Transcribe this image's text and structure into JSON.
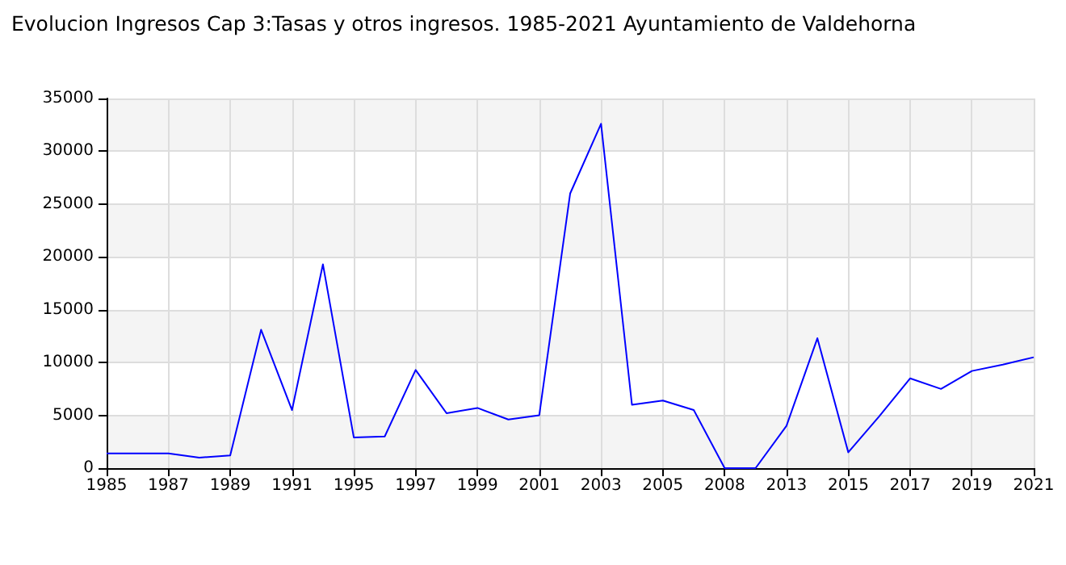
{
  "chart_data": {
    "type": "line",
    "title": "Evolucion Ingresos Cap 3:Tasas y otros ingresos. 1985-2021 Ayuntamiento de Valdehorna",
    "categories": [
      "1985",
      null,
      "1987",
      null,
      "1989",
      null,
      "1991",
      null,
      "1995",
      null,
      "1997",
      null,
      "1999",
      null,
      "2001",
      null,
      "2003",
      null,
      "2005",
      null,
      "2008",
      null,
      "2013",
      null,
      "2015",
      null,
      "2017",
      null,
      "2019",
      null,
      "2021"
    ],
    "series": [
      {
        "color": "#0000ff",
        "values": [
          1400,
          1400,
          1400,
          1000,
          1200,
          13100,
          5500,
          19300,
          2900,
          3000,
          9300,
          5200,
          5700,
          4600,
          5000,
          26000,
          32600,
          6000,
          6400,
          5500,
          0,
          0,
          4000,
          12300,
          1500,
          4900,
          8500,
          7500,
          9200,
          9800,
          10500
        ]
      }
    ],
    "ylim": [
      0,
      35000
    ],
    "yticks": [
      0,
      5000,
      10000,
      15000,
      20000,
      25000,
      30000,
      35000
    ],
    "grid": true,
    "marker": "none",
    "line_style": "solid"
  }
}
